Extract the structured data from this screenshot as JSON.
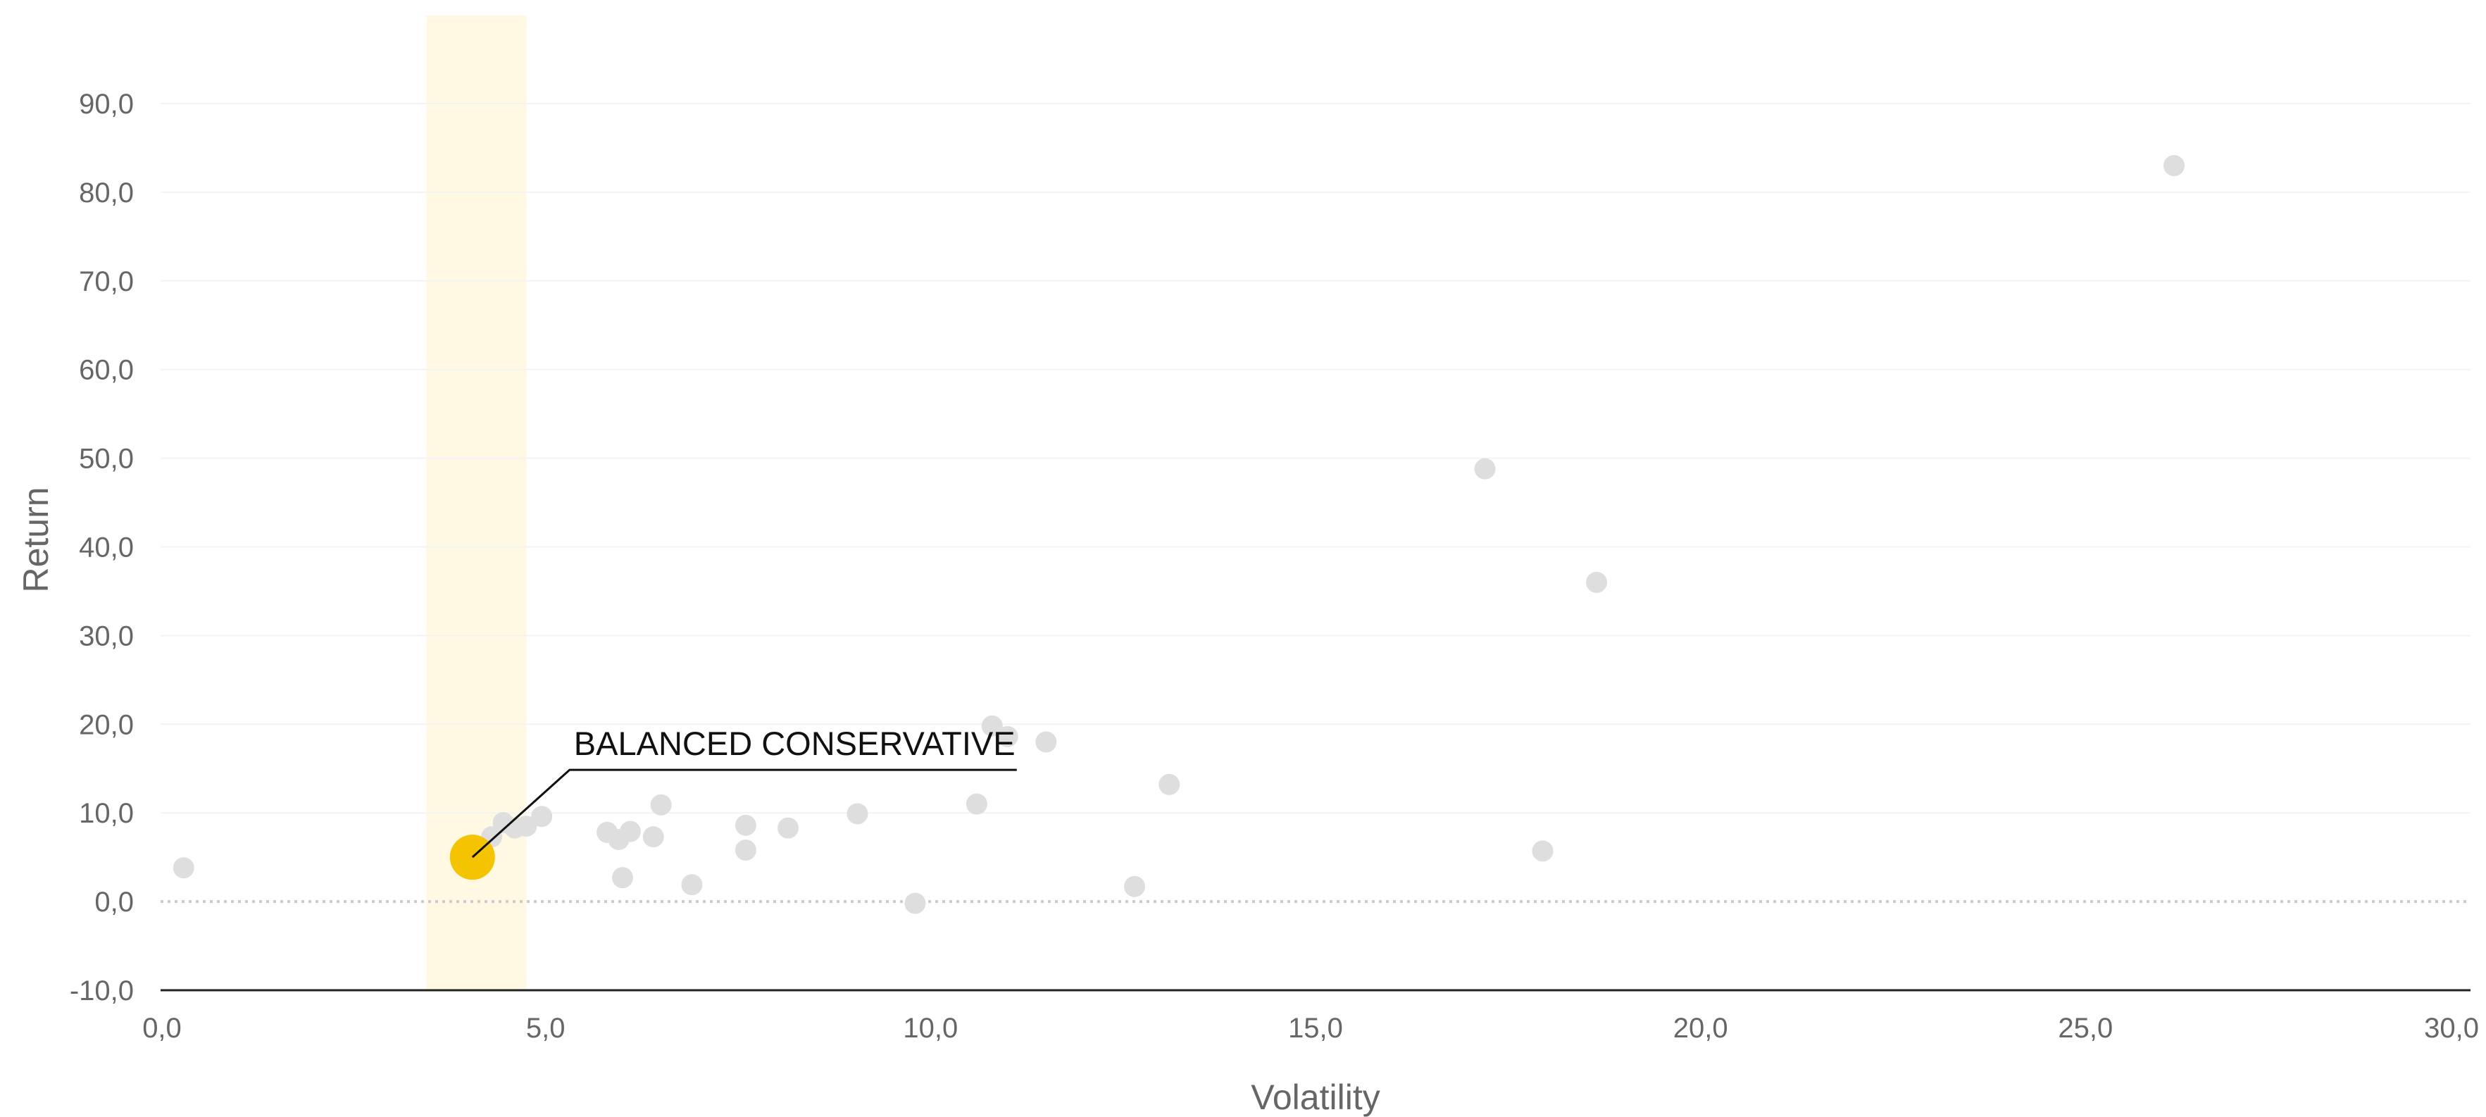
{
  "chart_data": {
    "type": "scatter",
    "title": "",
    "xlabel": "Volatility",
    "ylabel": "Return",
    "xlim": [
      0,
      30
    ],
    "ylim": [
      -10,
      95
    ],
    "x_ticks": [
      0,
      5,
      10,
      15,
      20,
      25,
      30
    ],
    "x_tick_labels": [
      "0,0",
      "5,0",
      "10,0",
      "15,0",
      "20,0",
      "25,0",
      "30,0"
    ],
    "y_ticks": [
      -10,
      0,
      10,
      20,
      30,
      40,
      50,
      60,
      70,
      80,
      90
    ],
    "y_tick_labels": [
      "-10,0",
      "0,0",
      "10,0",
      "20,0",
      "30,0",
      "40,0",
      "50,0",
      "60,0",
      "70,0",
      "80,0",
      "90,0"
    ],
    "grid": true,
    "zero_line": "dotted",
    "highlight_band": {
      "x_from": 3.45,
      "x_to": 4.75,
      "color": "#FFF8E3"
    },
    "colors": {
      "points": "#DEDEDE",
      "highlight": "#F5C400",
      "annotation": "#111111",
      "axis": "#222222",
      "grid": "#F3F3F3",
      "zero_line": "#CCCCCC",
      "tick_text": "#666666"
    },
    "highlight_point": {
      "label": "BALANCED CONSERVATIVE",
      "x": 4.05,
      "y": 5.0
    },
    "series": [
      {
        "values": [
          {
            "x": 0.3,
            "y": 3.8
          },
          {
            "x": 4.3,
            "y": 7.3
          },
          {
            "x": 4.45,
            "y": 8.9
          },
          {
            "x": 4.6,
            "y": 8.3
          },
          {
            "x": 4.75,
            "y": 8.5
          },
          {
            "x": 4.95,
            "y": 9.6
          },
          {
            "x": 5.8,
            "y": 7.8
          },
          {
            "x": 5.95,
            "y": 7.0
          },
          {
            "x": 6.0,
            "y": 2.7
          },
          {
            "x": 6.1,
            "y": 7.9
          },
          {
            "x": 6.4,
            "y": 7.3
          },
          {
            "x": 6.5,
            "y": 10.9
          },
          {
            "x": 6.9,
            "y": 1.9
          },
          {
            "x": 7.6,
            "y": 8.6
          },
          {
            "x": 7.6,
            "y": 5.8
          },
          {
            "x": 8.15,
            "y": 8.3
          },
          {
            "x": 9.05,
            "y": 9.9
          },
          {
            "x": 9.8,
            "y": -0.2
          },
          {
            "x": 10.6,
            "y": 11.0
          },
          {
            "x": 10.8,
            "y": 19.8
          },
          {
            "x": 11.0,
            "y": 18.6
          },
          {
            "x": 11.5,
            "y": 18.0
          },
          {
            "x": 12.65,
            "y": 1.7
          },
          {
            "x": 13.1,
            "y": 13.2
          },
          {
            "x": 17.2,
            "y": 48.8
          },
          {
            "x": 17.95,
            "y": 5.7
          },
          {
            "x": 18.65,
            "y": 36.0
          },
          {
            "x": 26.15,
            "y": 83.0
          }
        ]
      }
    ]
  }
}
